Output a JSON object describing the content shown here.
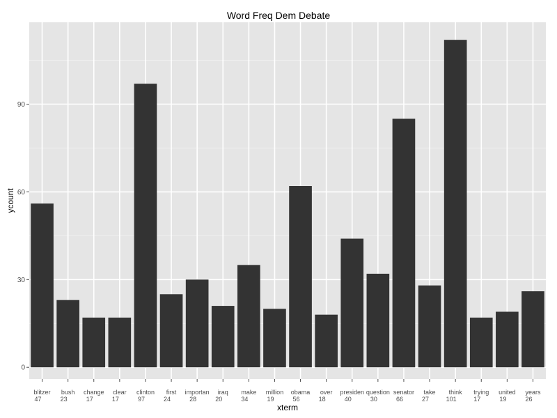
{
  "chart_data": {
    "type": "bar",
    "title": "Word Freq Dem Debate",
    "xlabel": "xterm",
    "ylabel": "ycount",
    "ylim": [
      -4,
      118
    ],
    "yticks": [
      0,
      30,
      60,
      90
    ],
    "grid": true,
    "bar_color": "#333333",
    "panel_color": "#e5e5e5",
    "grid_color": "#ffffff",
    "categories": [
      {
        "term": "blitzer",
        "label": "47"
      },
      {
        "term": "bush",
        "label": "23"
      },
      {
        "term": "change",
        "label": "17"
      },
      {
        "term": "clear",
        "label": "17"
      },
      {
        "term": "clinton",
        "label": "97"
      },
      {
        "term": "first",
        "label": "24"
      },
      {
        "term": "importan",
        "label": "28"
      },
      {
        "term": "iraq",
        "label": "20"
      },
      {
        "term": "make",
        "label": "34"
      },
      {
        "term": "million",
        "label": "19"
      },
      {
        "term": "obama",
        "label": "56"
      },
      {
        "term": "over",
        "label": "18"
      },
      {
        "term": "presiden",
        "label": "40"
      },
      {
        "term": "question",
        "label": "30"
      },
      {
        "term": "senator",
        "label": "66"
      },
      {
        "term": "take",
        "label": "27"
      },
      {
        "term": "think",
        "label": "101"
      },
      {
        "term": "trying",
        "label": "17"
      },
      {
        "term": "united",
        "label": "19"
      },
      {
        "term": "years",
        "label": "26"
      }
    ],
    "values": [
      56,
      23,
      17,
      17,
      97,
      25,
      30,
      21,
      35,
      20,
      62,
      18,
      44,
      32,
      85,
      28,
      112,
      17,
      19,
      26
    ]
  }
}
